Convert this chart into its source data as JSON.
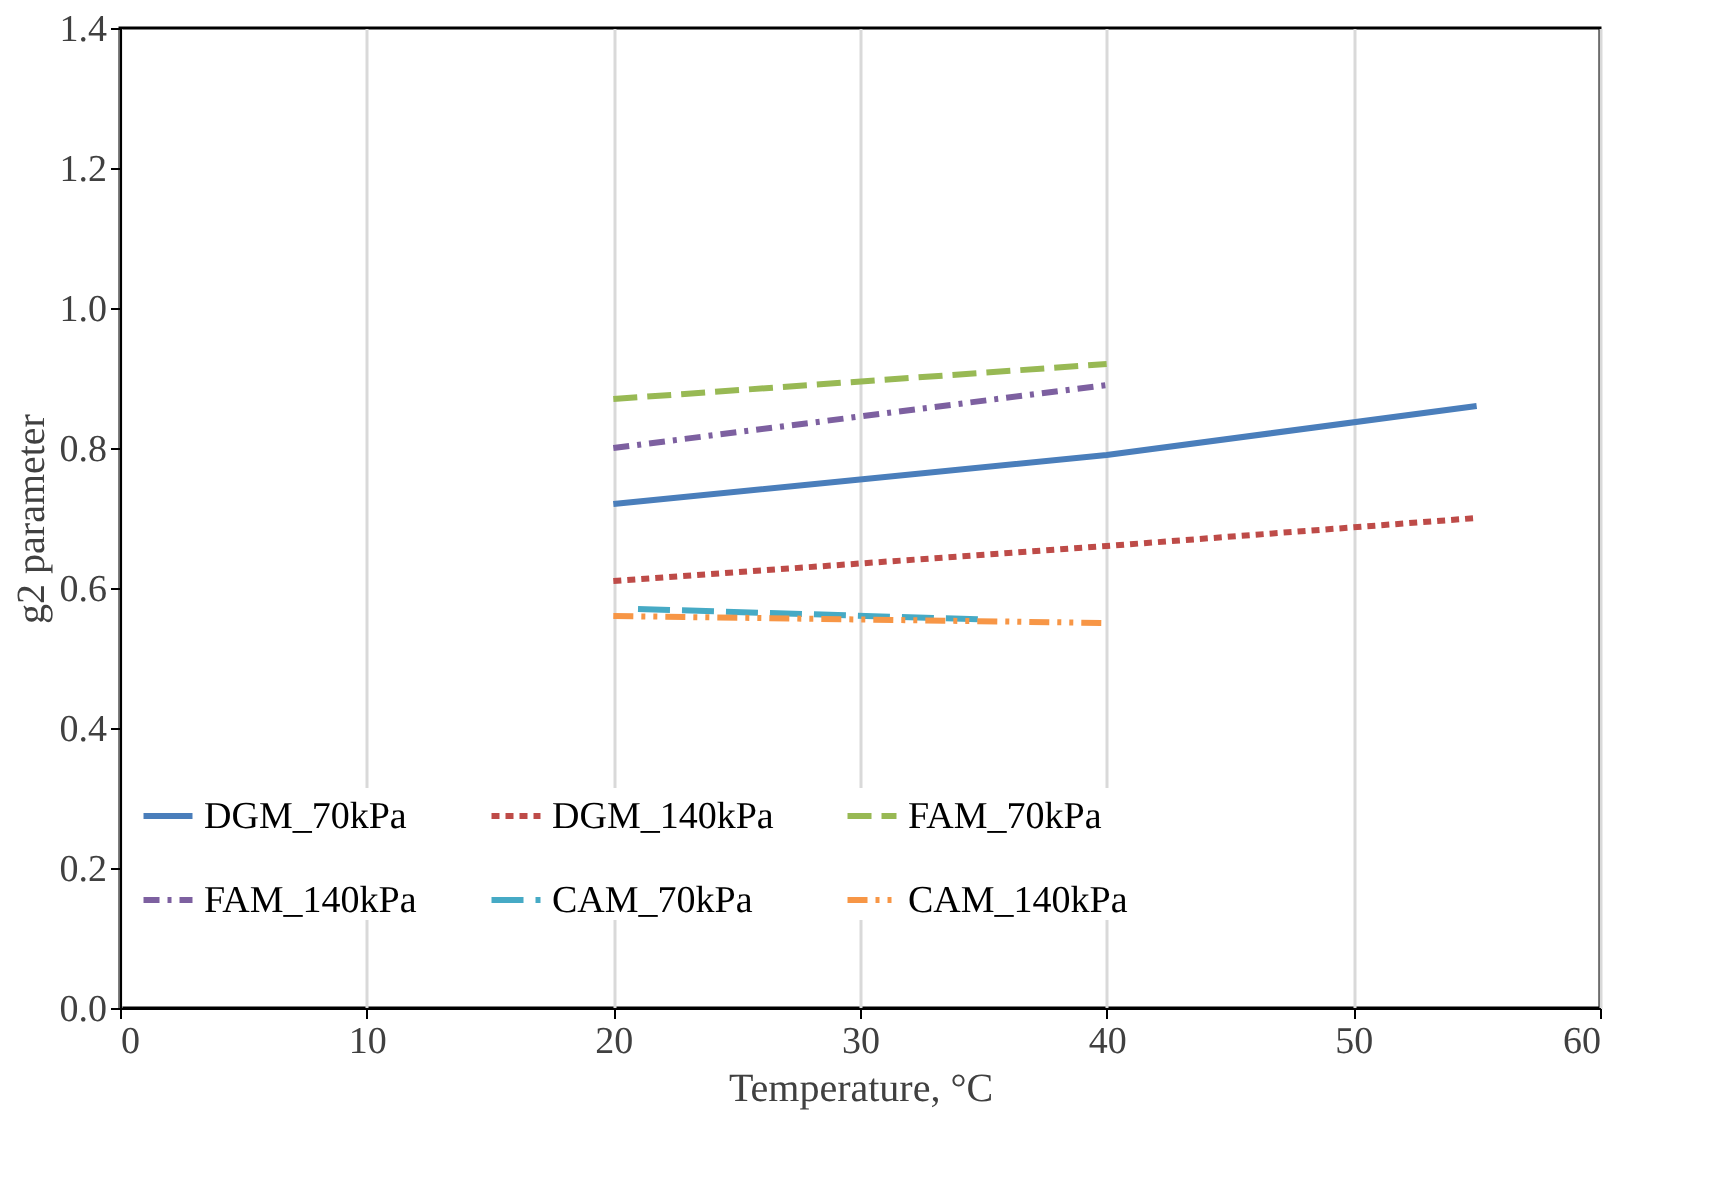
{
  "chart_data": {
    "type": "line",
    "xlabel": "Temperature, °C",
    "ylabel": "g2 parameter",
    "xlim": [
      0,
      60
    ],
    "xticks": [
      0,
      10,
      20,
      30,
      40,
      50,
      60
    ],
    "ylim": [
      0,
      1.4
    ],
    "yticks": [
      {
        "value": 0,
        "label": "0.0"
      },
      {
        "value": 0.2,
        "label": "0.2"
      },
      {
        "value": 0.4,
        "label": "0.4"
      },
      {
        "value": 0.6,
        "label": "0.6"
      },
      {
        "value": 0.8,
        "label": "0.8"
      },
      {
        "value": 1.0,
        "label": "1.0"
      },
      {
        "value": 1.2,
        "label": "1.2"
      },
      {
        "value": 1.4,
        "label": "1.4"
      }
    ],
    "grid": "x",
    "legend": "bottom",
    "marker": "none",
    "series": [
      {
        "name": "DGM_70kPa",
        "color": "#4a7ebb",
        "line_style": "solid",
        "x": [
          20,
          30,
          40,
          55
        ],
        "values": [
          0.72,
          0.755,
          0.79,
          0.86
        ]
      },
      {
        "name": "DGM_140kPa",
        "color": "#be4b48",
        "line_style": "dotted",
        "x": [
          20,
          40,
          55
        ],
        "values": [
          0.61,
          0.66,
          0.7
        ]
      },
      {
        "name": "FAM_70kPa",
        "color": "#98b954",
        "line_style": "dashed",
        "x": [
          20,
          40
        ],
        "values": [
          0.87,
          0.92
        ]
      },
      {
        "name": "FAM_140kPa",
        "color": "#7d60a0",
        "line_style": "dashed",
        "x": [
          20,
          40
        ],
        "values": [
          0.8,
          0.89
        ]
      },
      {
        "name": "CAM_70kPa",
        "color": "#46aac5",
        "line_style": "dashed",
        "x": [
          21,
          35
        ],
        "values": [
          0.57,
          0.555
        ]
      },
      {
        "name": "CAM_140kPa",
        "color": "#f79646",
        "line_style": "dashed",
        "x": [
          20,
          40
        ],
        "values": [
          0.56,
          0.55
        ]
      }
    ]
  }
}
